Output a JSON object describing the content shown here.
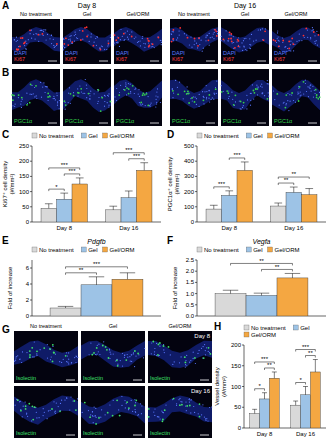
{
  "image_panels": [
    {
      "panel": "A",
      "days": [
        "Day 8",
        "Day 16"
      ],
      "columns": [
        "No treatment",
        "Gel",
        "Gel/ORM"
      ],
      "stains": [
        "DAPI",
        "Ki67"
      ]
    },
    {
      "panel": "B",
      "stains": [
        "PGC1α"
      ]
    },
    {
      "panel": "G",
      "days": [
        "Day 8",
        "Day 16"
      ],
      "columns": [
        "No treatment",
        "Gel",
        "Gel/ORM"
      ],
      "stains": [
        "Isolectin"
      ]
    }
  ],
  "chart_data": [
    {
      "type": "bar",
      "panel": "C",
      "y_label": [
        "Ki67⁺ cell density",
        "(#/mm²)"
      ],
      "categories": [
        "Day 8",
        "Day 16"
      ],
      "series": [
        {
          "name": "No treatment",
          "color": "#d9d9d9",
          "values": [
            45,
            40
          ],
          "errors": [
            15,
            12
          ]
        },
        {
          "name": "Gel",
          "color": "#9dc3e6",
          "values": [
            75,
            80
          ],
          "errors": [
            20,
            22
          ]
        },
        {
          "name": "Gel/ORM",
          "color": "#f4a742",
          "values": [
            125,
            170
          ],
          "errors": [
            20,
            25
          ]
        }
      ],
      "ylim": [
        0,
        250
      ],
      "yticks": [
        0,
        50,
        100,
        150,
        200,
        250
      ],
      "legend": "top",
      "significance": [
        {
          "group": 0,
          "bars": [
            0,
            1
          ],
          "label": "*"
        },
        {
          "group": 0,
          "bars": [
            1,
            2
          ],
          "label": "***"
        },
        {
          "group": 0,
          "bars": [
            0,
            2
          ],
          "label": "***"
        },
        {
          "group": 1,
          "bars": [
            1,
            2
          ],
          "label": "***"
        },
        {
          "group": 1,
          "bars": [
            0,
            2
          ],
          "label": "***"
        }
      ]
    },
    {
      "type": "bar",
      "panel": "D",
      "y_label": [
        "PGC1α⁺ cell density",
        "(#/mm²)"
      ],
      "categories": [
        "Day 8",
        "Day 16"
      ],
      "series": [
        {
          "name": "No treatment",
          "color": "#d9d9d9",
          "values": [
            85,
            105
          ],
          "errors": [
            25,
            20
          ]
        },
        {
          "name": "Gel",
          "color": "#9dc3e6",
          "values": [
            175,
            195
          ],
          "errors": [
            30,
            35
          ]
        },
        {
          "name": "Gel/ORM",
          "color": "#f4a742",
          "values": [
            340,
            180
          ],
          "errors": [
            55,
            40
          ]
        }
      ],
      "ylim": [
        0,
        500
      ],
      "yticks": [
        0,
        100,
        200,
        300,
        400,
        500
      ],
      "legend": "top",
      "significance": [
        {
          "group": 0,
          "bars": [
            0,
            1
          ],
          "label": "***"
        },
        {
          "group": 0,
          "bars": [
            1,
            2
          ],
          "label": "***"
        },
        {
          "group": 1,
          "bars": [
            0,
            1
          ],
          "label": "**"
        },
        {
          "group": 1,
          "bars": [
            0,
            2
          ],
          "label": "**"
        }
      ]
    },
    {
      "type": "bar",
      "panel": "E",
      "title": "Pdgfb",
      "y_label": [
        "Fold of increase"
      ],
      "categories": [
        "No treatment",
        "Gel",
        "Gel/ORM"
      ],
      "values": [
        1,
        3.9,
        4.6
      ],
      "errors": [
        0.2,
        1.0,
        0.8
      ],
      "colors": [
        "#d9d9d9",
        "#9dc3e6",
        "#f4a742"
      ],
      "ylim": [
        0,
        7
      ],
      "yticks": [
        0,
        2,
        4,
        6
      ],
      "legend": "top",
      "tick_labels": "y",
      "significance": [
        {
          "group": 0,
          "bars": [
            0,
            1
          ],
          "label": "**"
        },
        {
          "group": 0,
          "bars": [
            0,
            2
          ],
          "label": "***"
        }
      ]
    },
    {
      "type": "bar",
      "panel": "F",
      "title": "Vegfa",
      "y_label": [
        "Fold of increase"
      ],
      "categories": [
        "No treatment",
        "Gel",
        "Gel/ORM"
      ],
      "values": [
        1.0,
        0.92,
        1.7
      ],
      "errors": [
        0.15,
        0.1,
        0.2
      ],
      "colors": [
        "#d9d9d9",
        "#9dc3e6",
        "#f4a742"
      ],
      "ylim": [
        0,
        2.5
      ],
      "yticks": [
        {
          "value": 0,
          "label": "0.0"
        },
        {
          "value": 0.5,
          "label": "0.5"
        },
        {
          "value": 1,
          "label": "1.0"
        },
        {
          "value": 1.5,
          "label": "1.5"
        },
        {
          "value": 2,
          "label": "2.0"
        },
        {
          "value": 2.5,
          "label": "2.5"
        }
      ],
      "legend": "top",
      "tick_labels": "y",
      "significance": [
        {
          "group": 0,
          "bars": [
            1,
            2
          ],
          "label": "**"
        },
        {
          "group": 0,
          "bars": [
            0,
            2
          ],
          "label": "**"
        }
      ]
    },
    {
      "type": "bar",
      "panel": "H",
      "y_label": [
        "Vessel density",
        "(#/mm²)"
      ],
      "categories": [
        "Day 8",
        "Day 16"
      ],
      "series": [
        {
          "name": "No treatment",
          "color": "#d9d9d9",
          "values": [
            35,
            55
          ],
          "errors": [
            10,
            10
          ]
        },
        {
          "name": "Gel",
          "color": "#9dc3e6",
          "values": [
            70,
            80
          ],
          "errors": [
            15,
            20
          ]
        },
        {
          "name": "Gel/ORM",
          "color": "#f4a742",
          "values": [
            120,
            135
          ],
          "errors": [
            15,
            30
          ]
        }
      ],
      "ylim": [
        0,
        200
      ],
      "yticks": [
        0,
        50,
        100,
        150,
        200
      ],
      "legend": "top",
      "significance": [
        {
          "group": 0,
          "bars": [
            0,
            1
          ],
          "label": "*"
        },
        {
          "group": 0,
          "bars": [
            1,
            2
          ],
          "label": "**"
        },
        {
          "group": 0,
          "bars": [
            0,
            2
          ],
          "label": "***"
        },
        {
          "group": 1,
          "bars": [
            0,
            1
          ],
          "label": "*"
        },
        {
          "group": 1,
          "bars": [
            1,
            2
          ],
          "label": "**"
        },
        {
          "group": 1,
          "bars": [
            0,
            2
          ],
          "label": "***"
        }
      ]
    }
  ]
}
